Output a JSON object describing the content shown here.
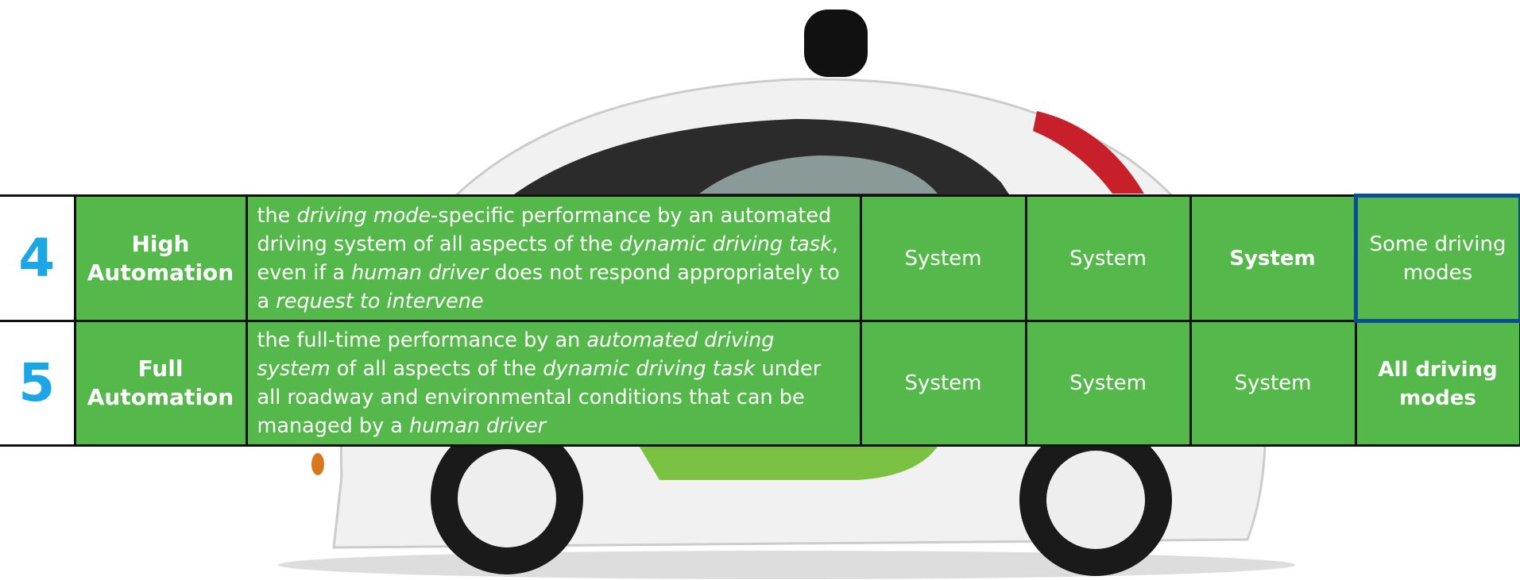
{
  "table": {
    "rows": [
      {
        "level": "4",
        "name": "High Automation",
        "description": [
          "the ",
          "driving mode",
          "-specific performance by an automated driving system of all aspects of the ",
          "dynamic driving task",
          ", even if a ",
          "human driver",
          " does not respond appropriately to a ",
          "request to intervene"
        ],
        "cells": [
          "System",
          "System",
          "System",
          "Some driving modes"
        ]
      },
      {
        "level": "5",
        "name": "Full Automation",
        "description": [
          "the full-time performance by an ",
          "automated driving system",
          " of all aspects of the ",
          "dynamic driving task",
          " under all roadway and environmental conditions that can be managed by a ",
          "human driver"
        ],
        "cells": [
          "System",
          "System",
          "System",
          "All driving modes"
        ]
      }
    ]
  }
}
